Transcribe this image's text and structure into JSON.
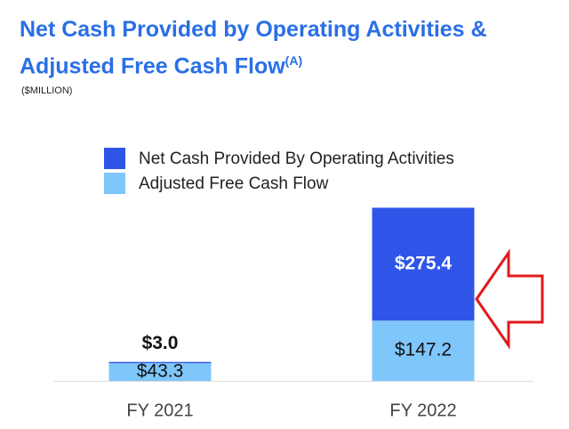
{
  "chart_data": {
    "type": "bar",
    "title": "Net Cash Provided by Operating Activities & Adjusted Free Cash Flow",
    "title_note": "(A)",
    "subtitle": "($MILLION)",
    "categories": [
      "FY 2021",
      "FY 2022"
    ],
    "series": [
      {
        "name": "Net Cash Provided By Operating Activities",
        "color": "#2f55e8",
        "values": [
          3.0,
          275.4
        ],
        "value_labels": [
          "$3.0",
          "$275.4"
        ]
      },
      {
        "name": "Adjusted Free Cash Flow",
        "color": "#7fc6fb",
        "values": [
          43.3,
          147.2
        ],
        "value_labels": [
          "$43.3",
          "$147.2"
        ]
      }
    ],
    "stacked": true,
    "ylim": [
      0,
      430
    ]
  }
}
